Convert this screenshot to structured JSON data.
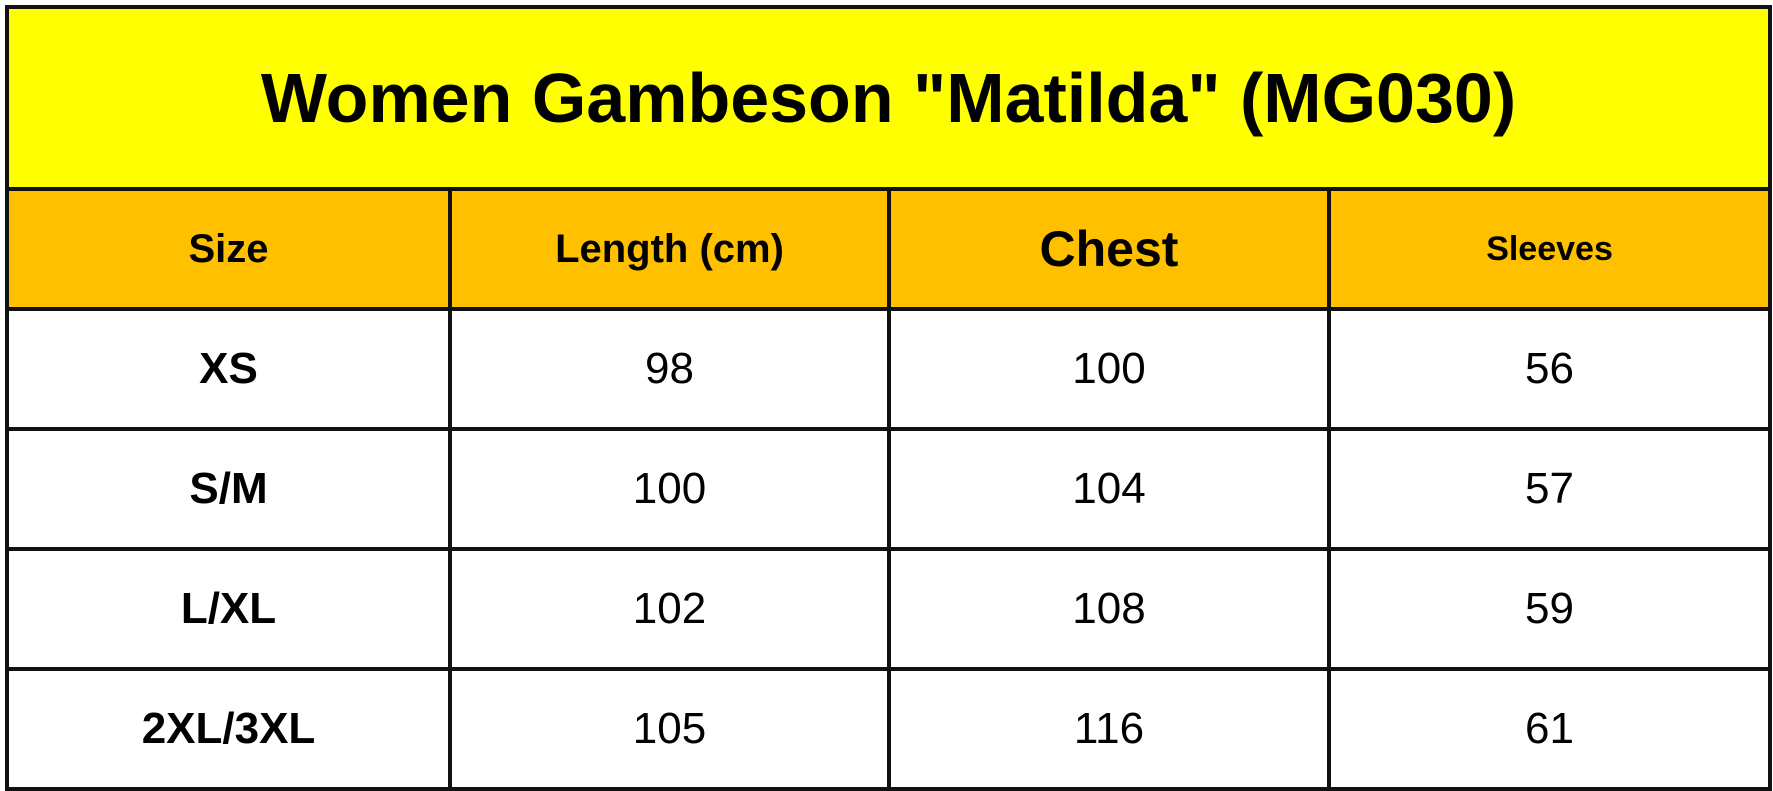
{
  "title": "Women Gambeson \"Matilda\" (MG030)",
  "colors": {
    "title_bg": "#ffff00",
    "header_bg": "#ffc000"
  },
  "headers": [
    "Size",
    "Length (cm)",
    "Chest",
    "Sleeves"
  ],
  "rows": [
    [
      "XS",
      "98",
      "100",
      "56"
    ],
    [
      "S/M",
      "100",
      "104",
      "57"
    ],
    [
      "L/XL",
      "102",
      "108",
      "59"
    ],
    [
      "2XL/3XL",
      "105",
      "116",
      "61"
    ]
  ]
}
